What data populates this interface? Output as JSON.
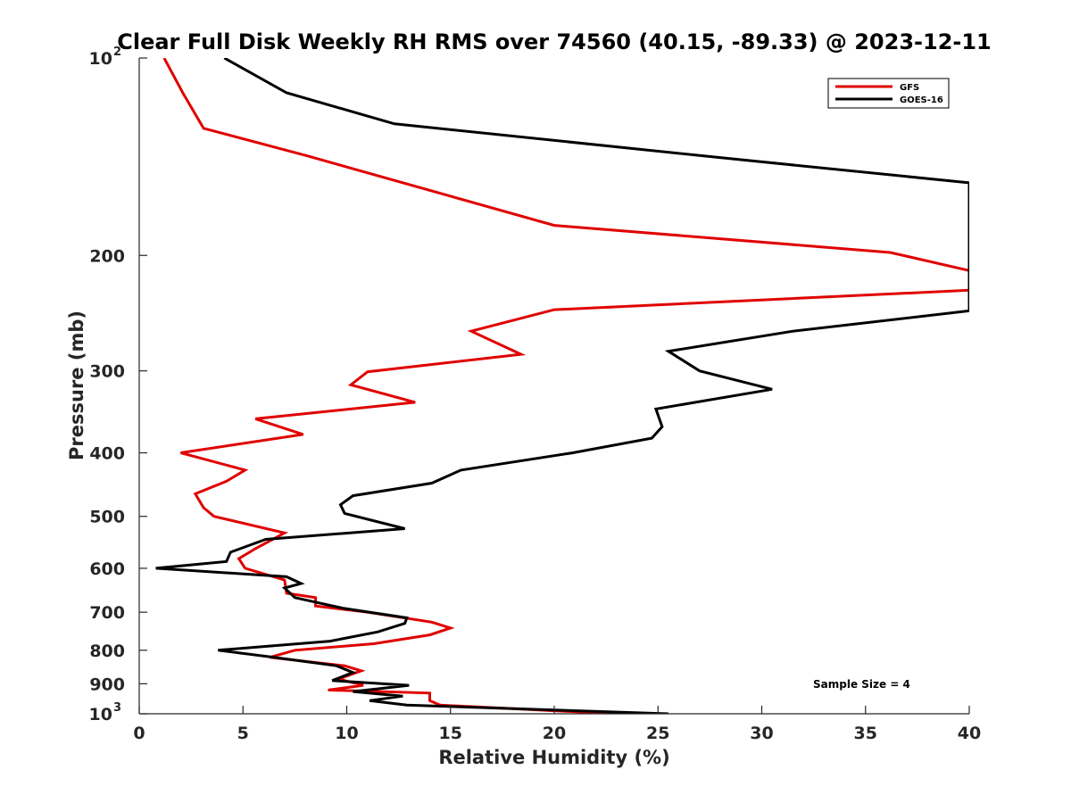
{
  "chart_data": {
    "type": "line",
    "title": "Clear Full Disk Weekly RH RMS over 74560 (40.15, -89.33) @ 2023-12-11",
    "xlabel": "Relative Humidity (%)",
    "ylabel": "Pressure (mb)",
    "xlim": [
      0,
      40
    ],
    "ylim": [
      100,
      1000
    ],
    "y_scale": "log",
    "y_reversed": true,
    "grid": false,
    "legend_position": "top-right",
    "x_ticks": [
      0,
      5,
      10,
      15,
      20,
      25,
      30,
      35,
      40
    ],
    "x_tick_labels": [
      "0",
      "5",
      "10",
      "15",
      "20",
      "25",
      "30",
      "35",
      "40"
    ],
    "y_ticks": [
      {
        "value": 100,
        "base": "10",
        "exp": "2"
      },
      {
        "value": 200,
        "label": "200"
      },
      {
        "value": 300,
        "label": "300"
      },
      {
        "value": 400,
        "label": "400"
      },
      {
        "value": 500,
        "label": "500"
      },
      {
        "value": 600,
        "label": "600"
      },
      {
        "value": 700,
        "label": "700"
      },
      {
        "value": 800,
        "label": "800"
      },
      {
        "value": 900,
        "label": "900"
      },
      {
        "value": 1000,
        "base": "10",
        "exp": "3"
      }
    ],
    "annotation": "Sample Size = 4",
    "series": [
      {
        "name": "GFS",
        "color": "#e00000",
        "points": [
          [
            1.2,
            100
          ],
          [
            2.1,
            113
          ],
          [
            3.1,
            128
          ],
          [
            8.1,
            141
          ],
          [
            20,
            180
          ],
          [
            36.2,
            198
          ],
          [
            40,
            211
          ],
          [
            40,
            226
          ],
          [
            20,
            242
          ],
          [
            16,
            261
          ],
          [
            18.4,
            283
          ],
          [
            11,
            301
          ],
          [
            10.2,
            315
          ],
          [
            13.3,
            335
          ],
          [
            5.6,
            355
          ],
          [
            7.9,
            375
          ],
          [
            2,
            400
          ],
          [
            5.1,
            425
          ],
          [
            4.2,
            442
          ],
          [
            2.7,
            462
          ],
          [
            3.1,
            485
          ],
          [
            3.6,
            500
          ],
          [
            7,
            530
          ],
          [
            5.6,
            560
          ],
          [
            4.8,
            580
          ],
          [
            5.1,
            600
          ],
          [
            7,
            625
          ],
          [
            7.1,
            655
          ],
          [
            8.5,
            665
          ],
          [
            8.5,
            685
          ],
          [
            11,
            700
          ],
          [
            14.1,
            725
          ],
          [
            15,
            740
          ],
          [
            14,
            758
          ],
          [
            11.3,
            782
          ],
          [
            7.5,
            800
          ],
          [
            6.3,
            820
          ],
          [
            9.9,
            845
          ],
          [
            10.7,
            860
          ],
          [
            9.6,
            885
          ],
          [
            10.8,
            905
          ],
          [
            9.1,
            920
          ],
          [
            14,
            930
          ],
          [
            14,
            955
          ],
          [
            14.5,
            970
          ],
          [
            23,
            1000
          ]
        ]
      },
      {
        "name": "GOES-16",
        "color": "#000000",
        "points": [
          [
            4.1,
            100
          ],
          [
            7.1,
            113
          ],
          [
            12.3,
            126
          ],
          [
            28.1,
            142
          ],
          [
            40,
            155
          ],
          [
            40,
            243
          ],
          [
            31.5,
            261
          ],
          [
            25.5,
            280
          ],
          [
            27,
            300
          ],
          [
            30.5,
            320
          ],
          [
            24.9,
            343
          ],
          [
            25.2,
            365
          ],
          [
            24.7,
            380
          ],
          [
            20.9,
            400
          ],
          [
            15.5,
            425
          ],
          [
            14.1,
            445
          ],
          [
            10.3,
            465
          ],
          [
            9.7,
            480
          ],
          [
            9.9,
            495
          ],
          [
            12.8,
            522
          ],
          [
            6.1,
            542
          ],
          [
            4.4,
            567
          ],
          [
            4.2,
            586
          ],
          [
            0.8,
            600
          ],
          [
            7.1,
            618
          ],
          [
            7.8,
            633
          ],
          [
            7,
            643
          ],
          [
            7.5,
            665
          ],
          [
            9.8,
            690
          ],
          [
            12.9,
            714
          ],
          [
            12.8,
            728
          ],
          [
            11.5,
            750
          ],
          [
            9.2,
            775
          ],
          [
            3.8,
            800
          ],
          [
            6.5,
            820
          ],
          [
            9.5,
            845
          ],
          [
            10.3,
            865
          ],
          [
            9.3,
            890
          ],
          [
            13,
            905
          ],
          [
            10.3,
            925
          ],
          [
            12.7,
            940
          ],
          [
            11.1,
            955
          ],
          [
            12.9,
            970
          ],
          [
            25.5,
            1000
          ]
        ]
      }
    ]
  }
}
